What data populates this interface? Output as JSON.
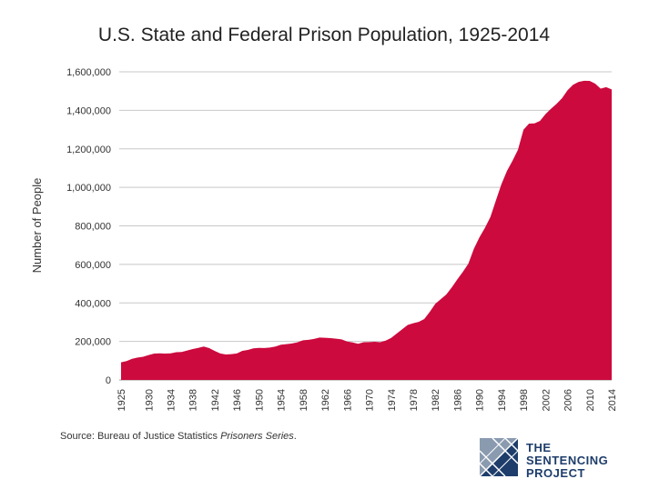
{
  "source": {
    "prefix": "Source: Bureau of Justice Statistics ",
    "italic": "Prisoners Series",
    "suffix": "."
  },
  "logo": {
    "line1": "THE",
    "line2": "SENTENCING",
    "line3": "PROJECT"
  },
  "chart_data": {
    "type": "area",
    "title": "U.S. State and Federal Prison Population, 1925-2014",
    "xlabel": "",
    "ylabel": "Number of People",
    "xlim": [
      1925,
      2014
    ],
    "ylim": [
      0,
      1600000
    ],
    "grid": true,
    "color": "#cc0a3e",
    "y_ticks": [
      0,
      200000,
      400000,
      600000,
      800000,
      1000000,
      1200000,
      1400000,
      1600000
    ],
    "y_tick_labels": [
      "0",
      "200,000",
      "400,000",
      "600,000",
      "800,000",
      "1,000,000",
      "1,200,000",
      "1,400,000",
      "1,600,000"
    ],
    "x_ticks": [
      1925,
      1930,
      1934,
      1938,
      1942,
      1946,
      1950,
      1954,
      1958,
      1962,
      1966,
      1970,
      1974,
      1978,
      1982,
      1986,
      1990,
      1994,
      1998,
      2002,
      2006,
      2010,
      2014
    ],
    "x": [
      1925,
      1926,
      1927,
      1928,
      1929,
      1930,
      1931,
      1932,
      1933,
      1934,
      1935,
      1936,
      1937,
      1938,
      1939,
      1940,
      1941,
      1942,
      1943,
      1944,
      1945,
      1946,
      1947,
      1948,
      1949,
      1950,
      1951,
      1952,
      1953,
      1954,
      1955,
      1956,
      1957,
      1958,
      1959,
      1960,
      1961,
      1962,
      1963,
      1964,
      1965,
      1966,
      1967,
      1968,
      1969,
      1970,
      1971,
      1972,
      1973,
      1974,
      1975,
      1976,
      1977,
      1978,
      1979,
      1980,
      1981,
      1982,
      1983,
      1984,
      1985,
      1986,
      1987,
      1988,
      1989,
      1990,
      1991,
      1992,
      1993,
      1994,
      1995,
      1996,
      1997,
      1998,
      1999,
      2000,
      2001,
      2002,
      2003,
      2004,
      2005,
      2006,
      2007,
      2008,
      2009,
      2010,
      2011,
      2012,
      2013,
      2014
    ],
    "values": [
      91669,
      97991,
      109983,
      116390,
      120496,
      129453,
      137082,
      137997,
      136810,
      138316,
      144180,
      145038,
      152741,
      160285,
      166187,
      173706,
      165439,
      150384,
      137220,
      132456,
      133649,
      137233,
      151304,
      155977,
      163749,
      166123,
      165680,
      168233,
      173579,
      182901,
      185780,
      189565,
      195414,
      205643,
      208105,
      212953,
      220149,
      218830,
      217283,
      214336,
      210895,
      199654,
      194896,
      187914,
      196007,
      196429,
      198061,
      196092,
      204211,
      218466,
      240593,
      262833,
      285456,
      294396,
      301470,
      315974,
      353673,
      395516,
      419346,
      443398,
      480568,
      522084,
      560812,
      603732,
      680907,
      739980,
      789610,
      846277,
      932074,
      1016691,
      1085022,
      1137722,
      1195498,
      1299096,
      1331278,
      1332345,
      1345217,
      1380516,
      1408361,
      1433728,
      1462866,
      1504598,
      1532851,
      1547742,
      1553574,
      1552669,
      1538847,
      1512430,
      1520403,
      1508636
    ]
  }
}
